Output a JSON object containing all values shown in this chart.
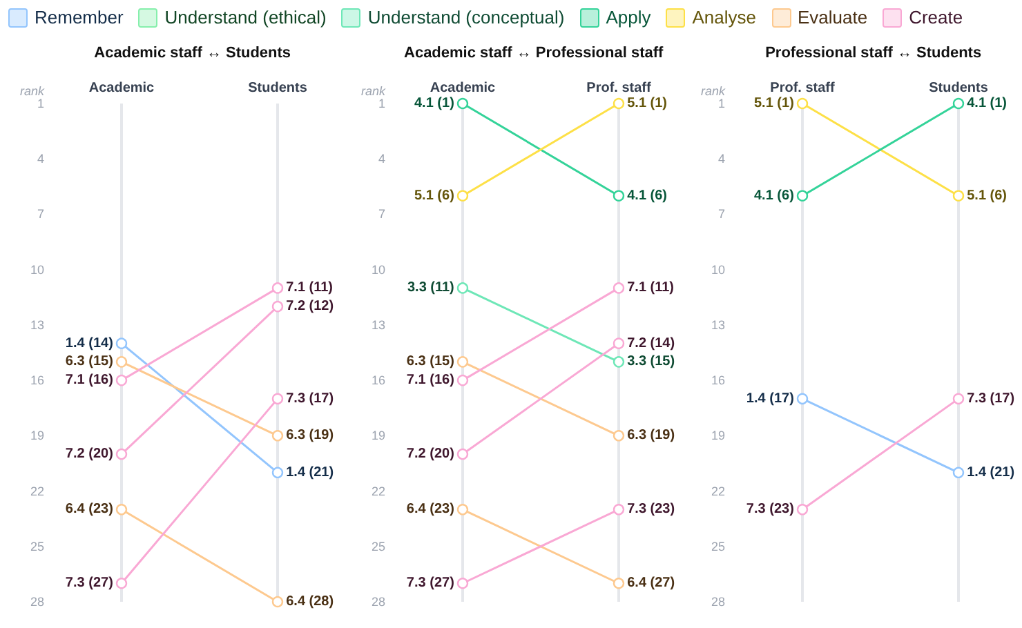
{
  "chart_data": [
    {
      "type": "line",
      "title": "Academic staff ↔ Students",
      "ylabel": "rank",
      "categories": [
        "Academic",
        "Students"
      ],
      "ylim": [
        28,
        1
      ],
      "yticks": [
        1,
        4,
        7,
        10,
        13,
        16,
        19,
        22,
        25,
        28
      ],
      "grid": "x",
      "legend": "top",
      "marker": "circle",
      "series": [
        {
          "name": "Remember",
          "color": "#93c5fd",
          "values": [
            14,
            21
          ],
          "value_labels": [
            "1.4 (14)",
            "1.4 (21)"
          ]
        },
        {
          "name": "Understand (ethical)",
          "color": "#86efac",
          "values": [
            null,
            null
          ]
        },
        {
          "name": "Understand (conceptual)",
          "color": "#6ee7b7",
          "values": [
            null,
            null
          ]
        },
        {
          "name": "Apply",
          "color": "#34d399",
          "values": [
            null,
            null
          ]
        },
        {
          "name": "Analyse",
          "color": "#fde047",
          "values": [
            null,
            null
          ]
        },
        {
          "name": "Evaluate",
          "color": "#fdc98f",
          "values": [
            15,
            19
          ],
          "value_labels": [
            "6.3 (15)",
            "6.3 (19)"
          ]
        },
        {
          "name": "Create",
          "color": "#f9a8d4",
          "values": [
            16,
            11
          ],
          "value_labels": [
            "7.1 (16)",
            "7.1 (11)"
          ]
        },
        {
          "color": "#f9a8d4",
          "values": [
            20,
            12
          ],
          "value_labels": [
            "7.2 (20)",
            "7.2 (12)"
          ]
        },
        {
          "color": "#fdc98f",
          "values": [
            23,
            28
          ],
          "value_labels": [
            "6.4 (23)",
            "6.4 (28)"
          ]
        },
        {
          "color": "#f9a8d4",
          "values": [
            27,
            17
          ],
          "value_labels": [
            "7.3 (27)",
            "7.3 (17)"
          ]
        }
      ]
    },
    {
      "type": "line",
      "title": "Academic staff ↔ Professional staff",
      "ylabel": "rank",
      "categories": [
        "Academic",
        "Prof. staff"
      ],
      "ylim": [
        28,
        1
      ],
      "yticks": [
        1,
        4,
        7,
        10,
        13,
        16,
        19,
        22,
        25,
        28
      ],
      "grid": "x",
      "legend": "top",
      "marker": "circle",
      "series": [
        {
          "color": "#34d399",
          "values": [
            1,
            6
          ],
          "value_labels": [
            "4.1 (1)",
            "4.1 (6)"
          ]
        },
        {
          "color": "#fde047",
          "values": [
            6,
            1
          ],
          "value_labels": [
            "5.1 (6)",
            "5.1 (1)"
          ]
        },
        {
          "color": "#6ee7b7",
          "values": [
            11,
            15
          ],
          "value_labels": [
            "3.3 (11)",
            "3.3 (15)"
          ]
        },
        {
          "color": "#fdc98f",
          "values": [
            15,
            19
          ],
          "value_labels": [
            "6.3 (15)",
            "6.3 (19)"
          ]
        },
        {
          "color": "#f9a8d4",
          "values": [
            16,
            11
          ],
          "value_labels": [
            "7.1 (16)",
            "7.1 (11)"
          ]
        },
        {
          "color": "#f9a8d4",
          "values": [
            20,
            14
          ],
          "value_labels": [
            "7.2 (20)",
            "7.2 (14)"
          ]
        },
        {
          "color": "#fdc98f",
          "values": [
            23,
            27
          ],
          "value_labels": [
            "6.4 (23)",
            "6.4 (27)"
          ]
        },
        {
          "color": "#f9a8d4",
          "values": [
            27,
            23
          ],
          "value_labels": [
            "7.3 (27)",
            "7.3 (23)"
          ]
        }
      ]
    },
    {
      "type": "line",
      "title": "Professional staff ↔ Students",
      "ylabel": "rank",
      "categories": [
        "Prof. staff",
        "Students"
      ],
      "ylim": [
        28,
        1
      ],
      "yticks": [
        1,
        4,
        7,
        10,
        13,
        16,
        19,
        22,
        25,
        28
      ],
      "grid": "x",
      "legend": "top",
      "marker": "circle",
      "series": [
        {
          "color": "#fde047",
          "values": [
            1,
            6
          ],
          "value_labels": [
            "5.1 (1)",
            "5.1 (6)"
          ]
        },
        {
          "color": "#34d399",
          "values": [
            6,
            1
          ],
          "value_labels": [
            "4.1 (6)",
            "4.1 (1)"
          ]
        },
        {
          "color": "#93c5fd",
          "values": [
            17,
            21
          ],
          "value_labels": [
            "1.4 (17)",
            "1.4 (21)"
          ]
        },
        {
          "color": "#f9a8d4",
          "values": [
            23,
            17
          ],
          "value_labels": [
            "7.3 (23)",
            "7.3 (17)"
          ]
        }
      ]
    }
  ]
}
